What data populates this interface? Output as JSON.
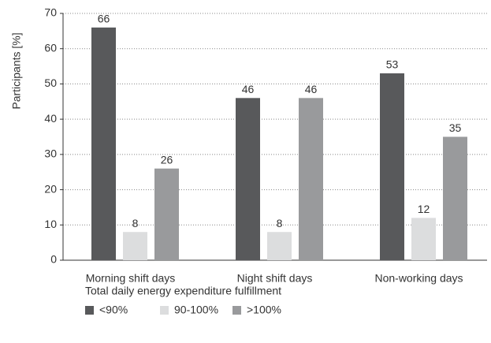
{
  "chart_data": {
    "type": "bar",
    "y_label": "Participants [%]",
    "legend_title": "Total daily energy expenditure fulfillment",
    "categories": [
      "Morning shift days",
      "Night shift days",
      "Non-working days"
    ],
    "series": [
      {
        "name": "<90%",
        "color": "#58595b",
        "values": [
          66,
          46,
          53
        ]
      },
      {
        "name": "90-100%",
        "color": "#dcddde",
        "values": [
          8,
          8,
          12
        ]
      },
      {
        "name": ">100%",
        "color": "#999a9c",
        "values": [
          26,
          46,
          35
        ]
      }
    ],
    "ylim": [
      0,
      70
    ],
    "yticks": [
      0,
      10,
      20,
      30,
      40,
      50,
      60,
      70
    ],
    "grid": true,
    "legend": "bottom-left"
  }
}
